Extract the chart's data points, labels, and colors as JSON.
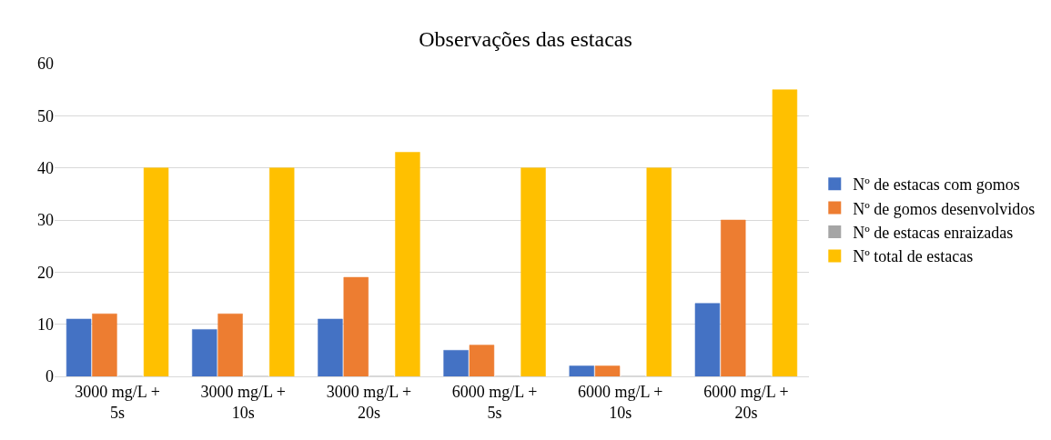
{
  "chart_data": {
    "type": "bar",
    "title": "Observações das estacas",
    "categories": [
      "3000 mg/L + 5s",
      "3000 mg/L + 10s",
      "3000 mg/L + 20s",
      "6000 mg/L + 5s",
      "6000 mg/L + 10s",
      "6000 mg/L + 20s"
    ],
    "series": [
      {
        "name": "Nº de estacas com gomos",
        "color": "#4472c4",
        "values": [
          11,
          9,
          11,
          5,
          2,
          14
        ]
      },
      {
        "name": "Nº de gomos desenvolvidos",
        "color": "#ed7d31",
        "values": [
          12,
          12,
          19,
          6,
          2,
          30
        ]
      },
      {
        "name": "Nº de estacas enraizadas",
        "color": "#a5a5a5",
        "values": [
          0,
          0,
          0,
          0,
          0,
          0
        ]
      },
      {
        "name": "Nº total de estacas",
        "color": "#ffc000",
        "values": [
          40,
          40,
          43,
          40,
          40,
          55
        ]
      }
    ],
    "ylim": [
      0,
      60
    ],
    "yticks": [
      0,
      10,
      20,
      30,
      40,
      50,
      60
    ],
    "grid": "y",
    "legend": "right"
  }
}
